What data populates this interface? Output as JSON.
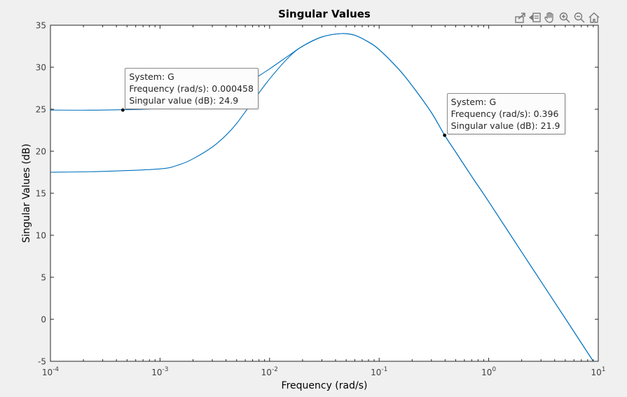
{
  "toolbar": {
    "buttons": [
      {
        "name": "export-icon"
      },
      {
        "name": "brush-icon"
      },
      {
        "name": "pan-hand-icon"
      },
      {
        "name": "zoom-in-icon"
      },
      {
        "name": "zoom-out-icon"
      },
      {
        "name": "home-icon"
      }
    ]
  },
  "colors": {
    "background": "#f0f0f0",
    "axes": "#ffffff",
    "axis_line": "#262626",
    "series": "#0072bd",
    "marker": "#000000",
    "tip_border": "#8c8c8c"
  },
  "chart_data": {
    "type": "line",
    "title": "Singular Values",
    "xlabel": "Frequency (rad/s)",
    "ylabel": "Singular Values (dB)",
    "xscale": "log",
    "xlim": [
      0.0001,
      10
    ],
    "ylim": [
      -5,
      35
    ],
    "xticks": [
      {
        "mantissa": "10",
        "exp": "-4"
      },
      {
        "mantissa": "10",
        "exp": "-3"
      },
      {
        "mantissa": "10",
        "exp": "-2"
      },
      {
        "mantissa": "10",
        "exp": "-1"
      },
      {
        "mantissa": "10",
        "exp": "0"
      },
      {
        "mantissa": "10",
        "exp": "1"
      }
    ],
    "yticks": [
      -5,
      0,
      5,
      10,
      15,
      20,
      25,
      30,
      35
    ],
    "grid": false,
    "series": [
      {
        "x": [
          0.0001,
          0.0003,
          0.001,
          0.002,
          0.003,
          0.005,
          0.007,
          0.01,
          0.015,
          0.02,
          0.03,
          0.045,
          0.06,
          0.08,
          0.1,
          0.15,
          0.2,
          0.3,
          0.396,
          0.5,
          0.7,
          1,
          2,
          3,
          5,
          9
        ],
        "y": [
          24.9,
          24.9,
          25.1,
          25.6,
          26.2,
          27.4,
          28.5,
          29.8,
          31.4,
          32.5,
          33.6,
          34.0,
          33.8,
          33.0,
          32.1,
          29.8,
          27.8,
          24.6,
          21.9,
          19.9,
          17.0,
          14.0,
          8.0,
          4.5,
          0.1,
          -5.0
        ]
      },
      {
        "x": [
          0.0001,
          0.0003,
          0.001,
          0.0015,
          0.002,
          0.003,
          0.004,
          0.005,
          0.007,
          0.01,
          0.015,
          0.02,
          0.03,
          0.045,
          0.06,
          0.08,
          0.1,
          0.15,
          0.2,
          0.3,
          0.396,
          0.5,
          0.7,
          1,
          2,
          3,
          5,
          9
        ],
        "y": [
          17.5,
          17.6,
          17.9,
          18.4,
          19.1,
          20.5,
          21.9,
          23.3,
          25.9,
          28.6,
          31.2,
          32.5,
          33.6,
          34.0,
          33.8,
          33.0,
          32.1,
          29.8,
          27.8,
          24.6,
          21.9,
          19.9,
          17.0,
          14.0,
          8.0,
          4.5,
          0.1,
          -5.0
        ]
      }
    ],
    "datatips": [
      {
        "x": 0.000458,
        "y": 24.9,
        "place": "upper-right",
        "lines": [
          "System: G",
          "Frequency (rad/s): 0.000458",
          "Singular value (dB): 24.9"
        ]
      },
      {
        "x": 0.396,
        "y": 21.9,
        "place": "upper-right",
        "lines": [
          "System: G",
          "Frequency (rad/s): 0.396",
          "Singular value (dB): 21.9"
        ]
      }
    ]
  }
}
